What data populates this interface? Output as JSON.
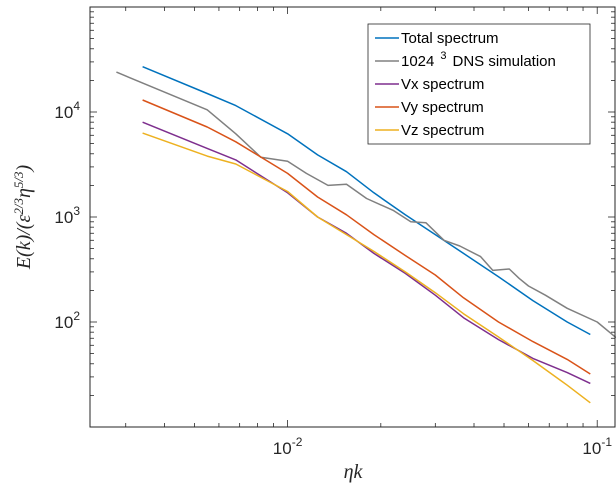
{
  "chart_data": {
    "type": "line",
    "title": "",
    "xlabel": "ηk",
    "ylabel": "E(k)/(ε^{2/3}η^{5/3})",
    "x_scale": "log",
    "y_scale": "log",
    "xlim": [
      0.0023,
      0.115
    ],
    "ylim": [
      10,
      100000
    ],
    "x_ticks": [
      {
        "value": 0.01,
        "base": "10",
        "exp": "-2"
      },
      {
        "value": 0.1,
        "base": "10",
        "exp": "-1"
      }
    ],
    "y_ticks": [
      {
        "value": 100,
        "base": "10",
        "exp": "2"
      },
      {
        "value": 1000,
        "base": "10",
        "exp": "3"
      },
      {
        "value": 10000,
        "base": "10",
        "exp": "4"
      }
    ],
    "grid": false,
    "legend_position": "top-right",
    "series": [
      {
        "name": "Total spectrum",
        "color": "#0072BD",
        "points": [
          [
            0.0034,
            27000
          ],
          [
            0.0055,
            15000
          ],
          [
            0.0068,
            11500
          ],
          [
            0.01,
            6200
          ],
          [
            0.0125,
            3900
          ],
          [
            0.0155,
            2700
          ],
          [
            0.019,
            1700
          ],
          [
            0.024,
            1050
          ],
          [
            0.03,
            680
          ],
          [
            0.037,
            450
          ],
          [
            0.048,
            270
          ],
          [
            0.062,
            160
          ],
          [
            0.08,
            100
          ],
          [
            0.095,
            76
          ]
        ]
      },
      {
        "name": "1024 ^3 DNS simulation",
        "label_main": "1024",
        "label_sup": "3",
        "label_rest": "DNS simulation",
        "color": "#808080",
        "points": [
          [
            0.0028,
            24000
          ],
          [
            0.0055,
            10500
          ],
          [
            0.0068,
            6200
          ],
          [
            0.0082,
            3700
          ],
          [
            0.01,
            3400
          ],
          [
            0.0115,
            2600
          ],
          [
            0.0135,
            2000
          ],
          [
            0.0155,
            2050
          ],
          [
            0.018,
            1500
          ],
          [
            0.022,
            1150
          ],
          [
            0.025,
            900
          ],
          [
            0.028,
            880
          ],
          [
            0.032,
            600
          ],
          [
            0.036,
            530
          ],
          [
            0.042,
            420
          ],
          [
            0.046,
            310
          ],
          [
            0.052,
            320
          ],
          [
            0.056,
            260
          ],
          [
            0.06,
            220
          ],
          [
            0.068,
            180
          ],
          [
            0.08,
            135
          ],
          [
            0.1,
            100
          ],
          [
            0.115,
            71
          ]
        ]
      },
      {
        "name": "Vx spectrum",
        "color": "#7E2F8E",
        "points": [
          [
            0.0034,
            8000
          ],
          [
            0.0055,
            4500
          ],
          [
            0.0068,
            3500
          ],
          [
            0.01,
            1700
          ],
          [
            0.0125,
            1000
          ],
          [
            0.0155,
            700
          ],
          [
            0.019,
            450
          ],
          [
            0.024,
            290
          ],
          [
            0.03,
            180
          ],
          [
            0.037,
            110
          ],
          [
            0.048,
            68
          ],
          [
            0.062,
            45
          ],
          [
            0.08,
            33
          ],
          [
            0.095,
            26
          ]
        ]
      },
      {
        "name": "Vy spectrum",
        "color": "#D95319",
        "points": [
          [
            0.0034,
            13000
          ],
          [
            0.0055,
            7200
          ],
          [
            0.0068,
            5200
          ],
          [
            0.01,
            2600
          ],
          [
            0.0125,
            1550
          ],
          [
            0.0155,
            1050
          ],
          [
            0.019,
            680
          ],
          [
            0.024,
            430
          ],
          [
            0.03,
            280
          ],
          [
            0.037,
            170
          ],
          [
            0.048,
            100
          ],
          [
            0.062,
            65
          ],
          [
            0.08,
            44
          ],
          [
            0.095,
            32
          ]
        ]
      },
      {
        "name": "Vz spectrum",
        "color": "#EDB120",
        "points": [
          [
            0.0034,
            6300
          ],
          [
            0.0055,
            3800
          ],
          [
            0.0068,
            3200
          ],
          [
            0.01,
            1750
          ],
          [
            0.0125,
            1000
          ],
          [
            0.0155,
            680
          ],
          [
            0.019,
            470
          ],
          [
            0.024,
            300
          ],
          [
            0.03,
            190
          ],
          [
            0.037,
            120
          ],
          [
            0.048,
            72
          ],
          [
            0.062,
            43
          ],
          [
            0.08,
            25
          ],
          [
            0.095,
            17
          ]
        ]
      }
    ]
  }
}
